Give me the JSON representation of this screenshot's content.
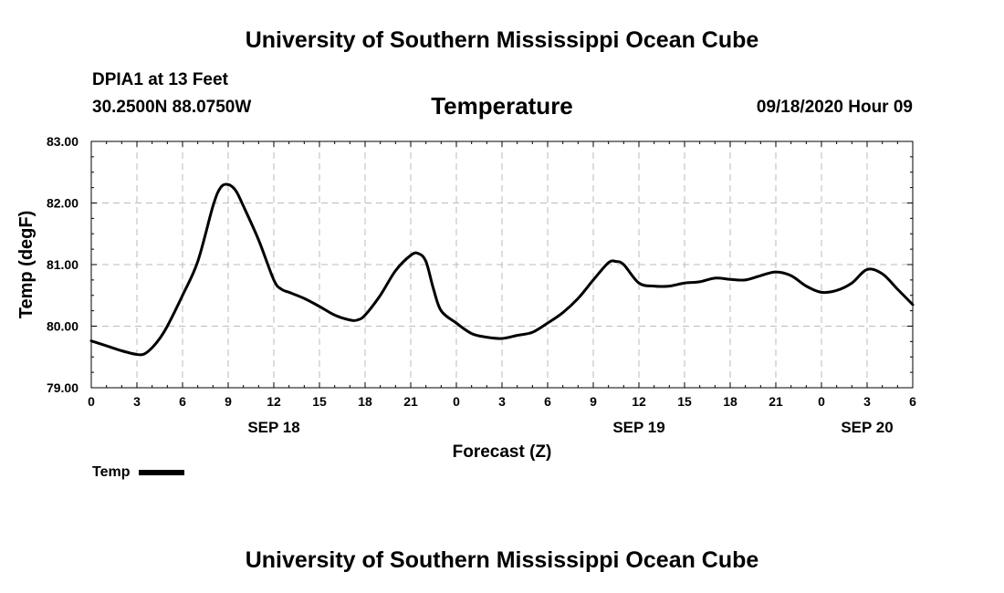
{
  "header": {
    "title": "University of Southern Mississippi Ocean Cube",
    "station": "DPIA1 at 13 Feet",
    "coordinates": "30.2500N 88.0750W",
    "variable": "Temperature",
    "timestamp": "09/18/2020 Hour 09"
  },
  "footer": {
    "title": "University of Southern Mississippi Ocean Cube"
  },
  "legend": {
    "label": "Temp"
  },
  "chart_data": {
    "type": "line",
    "title": "Temperature",
    "xlabel": "Forecast (Z)",
    "ylabel": "Temp (degF)",
    "xlim": [
      0,
      54
    ],
    "ylim": [
      79,
      83
    ],
    "grid": true,
    "line_color": "#000000",
    "grid_color": "#bbbbbb",
    "x_tick_values": [
      0,
      3,
      6,
      9,
      12,
      15,
      18,
      21,
      24,
      27,
      30,
      33,
      36,
      39,
      42,
      45,
      48,
      51,
      54
    ],
    "x_tick_labels": [
      "0",
      "3",
      "6",
      "9",
      "12",
      "15",
      "18",
      "21",
      "0",
      "3",
      "6",
      "9",
      "12",
      "15",
      "18",
      "21",
      "0",
      "3",
      "6"
    ],
    "y_tick_values": [
      79,
      80,
      81,
      82,
      83
    ],
    "y_tick_labels": [
      "79.00",
      "80.00",
      "81.00",
      "82.00",
      "83.00"
    ],
    "date_labels": [
      {
        "label": "SEP 18",
        "x": 12
      },
      {
        "label": "SEP 19",
        "x": 36
      },
      {
        "label": "SEP 20",
        "x": 51
      }
    ],
    "series": [
      {
        "name": "Temp",
        "x": [
          0,
          1,
          2,
          3,
          3.5,
          4,
          4.5,
          5,
          6,
          7,
          8,
          8.5,
          9,
          9.5,
          10,
          11,
          12,
          12.5,
          13,
          14,
          15,
          16,
          17,
          17.5,
          18,
          19,
          20,
          21,
          21.5,
          22,
          22.5,
          23,
          24,
          25,
          26,
          27,
          28,
          29,
          30,
          31,
          32,
          33,
          34,
          34.5,
          35,
          36,
          37,
          38,
          39,
          40,
          41,
          42,
          43,
          44,
          45,
          46,
          47,
          48,
          49,
          50,
          51,
          52,
          53,
          54
        ],
        "y": [
          79.76,
          79.68,
          79.6,
          79.54,
          79.55,
          79.65,
          79.8,
          80.0,
          80.5,
          81.05,
          81.95,
          82.25,
          82.3,
          82.2,
          81.95,
          81.4,
          80.75,
          80.6,
          80.55,
          80.45,
          80.32,
          80.18,
          80.1,
          80.1,
          80.18,
          80.5,
          80.9,
          81.15,
          81.18,
          81.05,
          80.6,
          80.25,
          80.05,
          79.88,
          79.82,
          79.8,
          79.85,
          79.9,
          80.05,
          80.22,
          80.45,
          80.75,
          81.03,
          81.05,
          81.0,
          80.7,
          80.65,
          80.65,
          80.7,
          80.72,
          80.78,
          80.76,
          80.75,
          80.82,
          80.88,
          80.82,
          80.65,
          80.55,
          80.58,
          80.7,
          80.92,
          80.85,
          80.6,
          80.35
        ]
      }
    ]
  }
}
